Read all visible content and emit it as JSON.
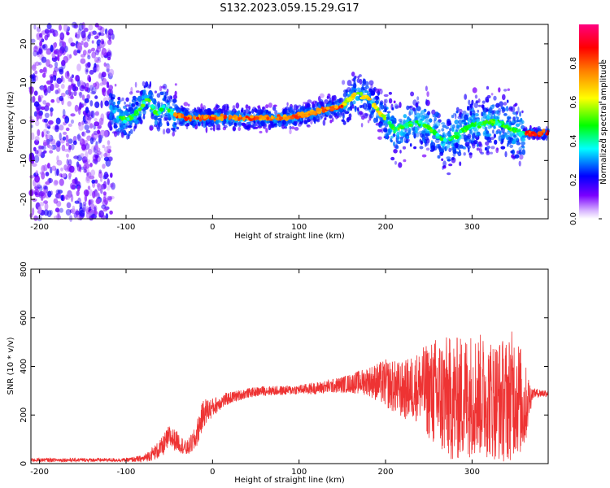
{
  "title": "S132.2023.059.15.29.G17",
  "chart_data": [
    {
      "type": "heatmap",
      "title": "S132.2023.059.15.29.G17",
      "xlabel": "Height of straight line (km)",
      "ylabel": "Frequency (Hz)",
      "xlim": [
        -210,
        388
      ],
      "ylim": [
        -25,
        25
      ],
      "x_ticks": [
        -200,
        -100,
        0,
        100,
        200,
        300
      ],
      "y_ticks": [
        -20,
        -10,
        0,
        10,
        20
      ],
      "colorbar": {
        "label": "Normalized spectral amplitude",
        "range": [
          0,
          1
        ],
        "ticks": [
          0.0,
          0.2,
          0.4,
          0.6,
          0.8
        ],
        "colormap": [
          "#ffffff",
          "#7a00ff",
          "#0000ff",
          "#00ffff",
          "#00ff00",
          "#ffff00",
          "#ff8000",
          "#ff0000",
          "#ff0080"
        ]
      },
      "ridge": {
        "x": [
          -115,
          -100,
          -85,
          -75,
          -65,
          -55,
          -45,
          -30,
          0,
          30,
          60,
          90,
          110,
          130,
          150,
          165,
          180,
          195,
          210,
          240,
          270,
          300,
          330,
          345,
          360,
          388
        ],
        "y": [
          3,
          0,
          3,
          6,
          2,
          4,
          2,
          1,
          1,
          1,
          1,
          1,
          2,
          3,
          4,
          7,
          6,
          2,
          -2,
          0,
          -5,
          -1,
          0,
          -2,
          -3,
          -3
        ]
      }
    },
    {
      "type": "line",
      "xlabel": "Height of straight line (km)",
      "ylabel": "SNR (10 * v/v)",
      "xlim": [
        -210,
        388
      ],
      "ylim": [
        0,
        800
      ],
      "x_ticks": [
        -200,
        -100,
        0,
        100,
        200,
        300
      ],
      "y_ticks": [
        0,
        200,
        400,
        600,
        800
      ],
      "color": "#ee3333",
      "series": [
        {
          "x": [
            -210,
            -150,
            -100,
            -80,
            -60,
            -50,
            -40,
            -30,
            -20,
            -15,
            -10,
            0,
            10,
            20,
            40,
            60,
            80,
            100,
            120,
            140,
            160,
            180,
            200,
            220,
            240,
            260,
            280,
            300,
            320,
            340,
            350,
            360,
            370,
            388
          ],
          "y": [
            15,
            15,
            15,
            20,
            60,
            110,
            90,
            60,
            100,
            160,
            210,
            230,
            255,
            270,
            290,
            300,
            300,
            305,
            310,
            320,
            330,
            340,
            330,
            300,
            320,
            280,
            260,
            290,
            270,
            260,
            300,
            230,
            290,
            290
          ],
          "spread": [
            8,
            8,
            8,
            15,
            40,
            50,
            40,
            30,
            50,
            60,
            60,
            40,
            30,
            25,
            20,
            20,
            20,
            20,
            25,
            30,
            40,
            60,
            100,
            120,
            150,
            250,
            260,
            260,
            250,
            260,
            270,
            200,
            20,
            15
          ]
        }
      ]
    }
  ]
}
